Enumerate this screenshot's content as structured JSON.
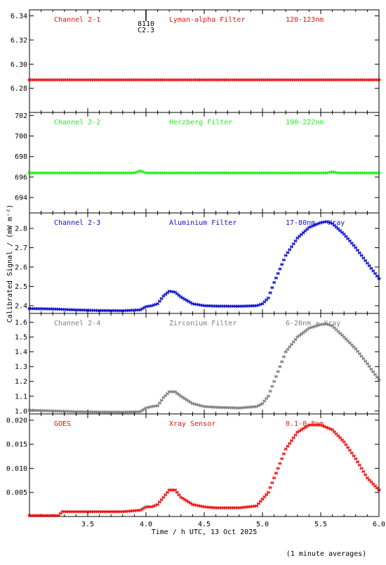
{
  "chart_data": {
    "type": "scatter",
    "x_axis": {
      "label": "Time / h UTC, 13 Oct 2025",
      "range": [
        3.0,
        6.0
      ],
      "ticks": [
        3.5,
        4.0,
        4.5,
        5.0,
        5.5,
        6.0
      ],
      "tick_labels": [
        "3.5",
        "4.0",
        "4.5",
        "5.0",
        "5.5",
        "6.0"
      ]
    },
    "y_axis_title": "Calibrated Signal / (mW m⁻²)",
    "footer_note": "(1 minute averages)",
    "flare_marker": {
      "x": 4.03,
      "labels": [
        "8110",
        "C2.3"
      ]
    },
    "panels": [
      {
        "channel": "Channel 2-1",
        "filter": "Lyman-alpha Filter",
        "band": "120-123nm",
        "color": "#ee1111",
        "ylim": [
          6.26,
          6.345
        ],
        "yticks": [
          6.28,
          6.3,
          6.32,
          6.34
        ],
        "ytick_labels": [
          "6.28",
          "6.30",
          "6.32",
          "6.34"
        ],
        "points": [
          [
            3.0,
            6.287
          ],
          [
            6.0,
            6.287
          ]
        ]
      },
      {
        "channel": "Channel 2-2",
        "filter": "Herzberg Filter",
        "band": "190-222nm",
        "color": "#22ee22",
        "ylim": [
          692.5,
          702.3
        ],
        "yticks": [
          694,
          696,
          698,
          700,
          702
        ],
        "ytick_labels": [
          "694",
          "696",
          "698",
          "700",
          "702"
        ],
        "points": [
          [
            3.0,
            696.4
          ],
          [
            3.9,
            696.4
          ],
          [
            3.95,
            696.6
          ],
          [
            4.0,
            696.4
          ],
          [
            5.55,
            696.4
          ],
          [
            5.6,
            696.5
          ],
          [
            5.65,
            696.4
          ],
          [
            6.0,
            696.4
          ]
        ]
      },
      {
        "channel": "Channel 2-3",
        "filter": "Aluminium Filter",
        "band": "17-80nm + Xray",
        "color": "#1111cc",
        "ylim": [
          2.36,
          2.88
        ],
        "yticks": [
          2.4,
          2.5,
          2.6,
          2.7,
          2.8
        ],
        "ytick_labels": [
          "2.4",
          "2.5",
          "2.6",
          "2.7",
          "2.8"
        ],
        "points": [
          [
            3.0,
            2.385
          ],
          [
            3.2,
            2.383
          ],
          [
            3.4,
            2.378
          ],
          [
            3.6,
            2.375
          ],
          [
            3.8,
            2.374
          ],
          [
            3.95,
            2.378
          ],
          [
            4.0,
            2.395
          ],
          [
            4.05,
            2.4
          ],
          [
            4.1,
            2.41
          ],
          [
            4.15,
            2.45
          ],
          [
            4.2,
            2.475
          ],
          [
            4.25,
            2.47
          ],
          [
            4.3,
            2.445
          ],
          [
            4.4,
            2.41
          ],
          [
            4.5,
            2.4
          ],
          [
            4.6,
            2.398
          ],
          [
            4.8,
            2.397
          ],
          [
            4.95,
            2.4
          ],
          [
            5.0,
            2.41
          ],
          [
            5.05,
            2.44
          ],
          [
            5.1,
            2.52
          ],
          [
            5.2,
            2.66
          ],
          [
            5.3,
            2.75
          ],
          [
            5.4,
            2.805
          ],
          [
            5.5,
            2.83
          ],
          [
            5.55,
            2.835
          ],
          [
            5.6,
            2.825
          ],
          [
            5.7,
            2.77
          ],
          [
            5.8,
            2.7
          ],
          [
            5.9,
            2.62
          ],
          [
            6.0,
            2.54
          ]
        ]
      },
      {
        "channel": "Channel 2-4",
        "filter": "Zirconium Filter",
        "band": "6-20nm + Xray",
        "color": "#808080",
        "ylim": [
          0.98,
          1.66
        ],
        "yticks": [
          1.0,
          1.1,
          1.2,
          1.3,
          1.4,
          1.5,
          1.6
        ],
        "ytick_labels": [
          "1.0",
          "1.1",
          "1.2",
          "1.3",
          "1.4",
          "1.5",
          "1.6"
        ],
        "points": [
          [
            3.0,
            1.005
          ],
          [
            3.2,
            1.0
          ],
          [
            3.4,
            0.995
          ],
          [
            3.6,
            0.993
          ],
          [
            3.8,
            0.992
          ],
          [
            3.95,
            0.995
          ],
          [
            4.0,
            1.02
          ],
          [
            4.05,
            1.03
          ],
          [
            4.1,
            1.035
          ],
          [
            4.15,
            1.09
          ],
          [
            4.2,
            1.13
          ],
          [
            4.25,
            1.13
          ],
          [
            4.3,
            1.1
          ],
          [
            4.4,
            1.05
          ],
          [
            4.5,
            1.03
          ],
          [
            4.6,
            1.025
          ],
          [
            4.8,
            1.02
          ],
          [
            4.95,
            1.03
          ],
          [
            5.0,
            1.05
          ],
          [
            5.05,
            1.1
          ],
          [
            5.1,
            1.2
          ],
          [
            5.2,
            1.4
          ],
          [
            5.3,
            1.5
          ],
          [
            5.4,
            1.56
          ],
          [
            5.5,
            1.585
          ],
          [
            5.55,
            1.59
          ],
          [
            5.6,
            1.575
          ],
          [
            5.7,
            1.5
          ],
          [
            5.8,
            1.42
          ],
          [
            5.9,
            1.32
          ],
          [
            6.0,
            1.21
          ]
        ]
      },
      {
        "channel": "GOES",
        "filter": "Xray Sensor",
        "band": "0.1-0.8nm",
        "color": "#ee1111",
        "ylim": [
          0.0,
          0.0213
        ],
        "yticks": [
          0.005,
          0.01,
          0.015,
          0.02
        ],
        "ytick_labels": [
          "0.005",
          "0.010",
          "0.015",
          "0.020"
        ],
        "points": [
          [
            3.0,
            0.0002
          ],
          [
            3.25,
            0.0002
          ],
          [
            3.28,
            0.001
          ],
          [
            3.4,
            0.001
          ],
          [
            3.6,
            0.001
          ],
          [
            3.8,
            0.001
          ],
          [
            3.95,
            0.0013
          ],
          [
            4.0,
            0.002
          ],
          [
            4.05,
            0.002
          ],
          [
            4.1,
            0.0025
          ],
          [
            4.15,
            0.004
          ],
          [
            4.2,
            0.0055
          ],
          [
            4.25,
            0.0055
          ],
          [
            4.3,
            0.004
          ],
          [
            4.4,
            0.0025
          ],
          [
            4.5,
            0.002
          ],
          [
            4.6,
            0.0018
          ],
          [
            4.8,
            0.0018
          ],
          [
            4.95,
            0.0022
          ],
          [
            5.05,
            0.005
          ],
          [
            5.1,
            0.008
          ],
          [
            5.2,
            0.014
          ],
          [
            5.3,
            0.0175
          ],
          [
            5.4,
            0.019
          ],
          [
            5.5,
            0.019
          ],
          [
            5.6,
            0.018
          ],
          [
            5.7,
            0.0155
          ],
          [
            5.8,
            0.012
          ],
          [
            5.9,
            0.008
          ],
          [
            6.0,
            0.0055
          ]
        ]
      }
    ]
  }
}
